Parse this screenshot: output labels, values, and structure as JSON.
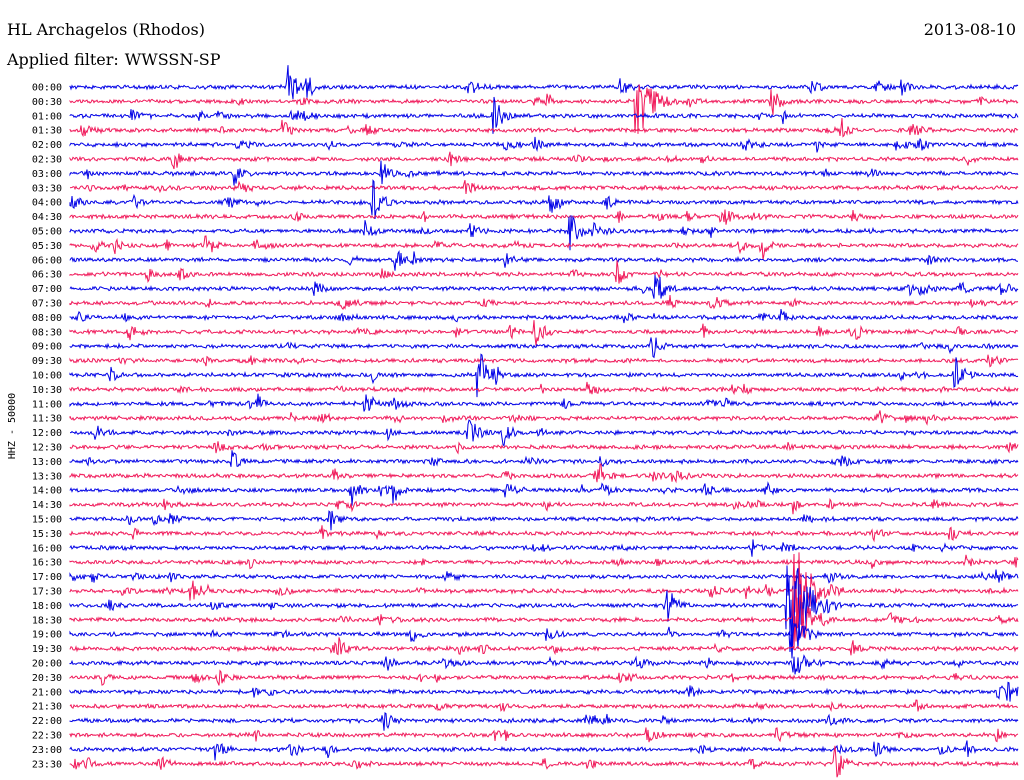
{
  "header": {
    "station": "HL Archagelos (Rhodos)",
    "date": "2013-08-10",
    "filter_label": "Applied filter:",
    "filter_value": "WWSSN-SP"
  },
  "chart_data": {
    "type": "line",
    "title": "HL Archagelos (Rhodos)",
    "subtitle": "Applied filter: WWSSN-SP",
    "date": "2013-08-10",
    "ylabel": "HHZ - 50000",
    "row_labels": [
      "00:00",
      "00:30",
      "01:00",
      "01:30",
      "02:00",
      "02:30",
      "03:00",
      "03:30",
      "04:00",
      "04:30",
      "05:00",
      "05:30",
      "06:00",
      "06:30",
      "07:00",
      "07:30",
      "08:00",
      "08:30",
      "09:00",
      "09:30",
      "10:00",
      "10:30",
      "11:00",
      "11:30",
      "12:00",
      "12:30",
      "13:00",
      "13:30",
      "14:00",
      "14:30",
      "15:00",
      "15:30",
      "16:00",
      "16:30",
      "17:00",
      "17:30",
      "18:00",
      "18:30",
      "19:00",
      "19:30",
      "20:00",
      "20:30",
      "21:00",
      "21:30",
      "22:00",
      "22:30",
      "23:00",
      "23:30"
    ],
    "trace_colors": [
      "#0000e6",
      "#f0195a"
    ],
    "trace_window_minutes": 30,
    "events": [
      {
        "row": "00:00",
        "minute": 6.9,
        "amplitude": 1.1
      },
      {
        "row": "00:00",
        "minute": 7.5,
        "amplitude": 0.9
      },
      {
        "row": "00:00",
        "minute": 26.3,
        "amplitude": 0.8
      },
      {
        "row": "00:30",
        "minute": 17.9,
        "amplitude": 3.4
      },
      {
        "row": "00:30",
        "minute": 22.2,
        "amplitude": 1.1
      },
      {
        "row": "01:00",
        "minute": 13.4,
        "amplitude": 1.5
      },
      {
        "row": "01:30",
        "minute": 6.7,
        "amplitude": 0.9
      },
      {
        "row": "01:30",
        "minute": 24.4,
        "amplitude": 0.8
      },
      {
        "row": "03:00",
        "minute": 5.2,
        "amplitude": 1.1
      },
      {
        "row": "03:00",
        "minute": 9.8,
        "amplitude": 1.2
      },
      {
        "row": "04:00",
        "minute": 9.6,
        "amplitude": 1.4
      },
      {
        "row": "04:00",
        "minute": 15.2,
        "amplitude": 1.3
      },
      {
        "row": "04:30",
        "minute": 20.6,
        "amplitude": 1.2
      },
      {
        "row": "05:00",
        "minute": 15.8,
        "amplitude": 1.6
      },
      {
        "row": "05:30",
        "minute": 4.3,
        "amplitude": 1.0
      },
      {
        "row": "06:00",
        "minute": 10.3,
        "amplitude": 1.0
      },
      {
        "row": "06:30",
        "minute": 17.3,
        "amplitude": 0.9
      },
      {
        "row": "07:00",
        "minute": 18.5,
        "amplitude": 1.6
      },
      {
        "row": "08:30",
        "minute": 14.7,
        "amplitude": 1.2
      },
      {
        "row": "09:00",
        "minute": 18.4,
        "amplitude": 1.1
      },
      {
        "row": "10:00",
        "minute": 12.9,
        "amplitude": 2.2
      },
      {
        "row": "10:00",
        "minute": 28.0,
        "amplitude": 1.5
      },
      {
        "row": "11:00",
        "minute": 9.3,
        "amplitude": 1.3
      },
      {
        "row": "12:00",
        "minute": 12.6,
        "amplitude": 1.4
      },
      {
        "row": "12:00",
        "minute": 13.7,
        "amplitude": 1.0
      },
      {
        "row": "13:00",
        "minute": 5.1,
        "amplitude": 1.0
      },
      {
        "row": "14:00",
        "minute": 8.9,
        "amplitude": 1.1
      },
      {
        "row": "14:00",
        "minute": 10.2,
        "amplitude": 1.0
      },
      {
        "row": "15:00",
        "minute": 8.2,
        "amplitude": 1.0
      },
      {
        "row": "16:00",
        "minute": 14.6,
        "amplitude": 1.1
      },
      {
        "row": "17:30",
        "minute": 3.8,
        "amplitude": 1.0
      },
      {
        "row": "17:30",
        "minute": 22.9,
        "amplitude": 4.2
      },
      {
        "row": "18:00",
        "minute": 22.7,
        "amplitude": 5.0
      },
      {
        "row": "18:00",
        "minute": 18.9,
        "amplitude": 1.3
      },
      {
        "row": "18:30",
        "minute": 22.9,
        "amplitude": 3.6
      },
      {
        "row": "19:00",
        "minute": 22.8,
        "amplitude": 2.3
      },
      {
        "row": "20:00",
        "minute": 22.9,
        "amplitude": 1.8
      },
      {
        "row": "21:00",
        "minute": 29.7,
        "amplitude": 1.5
      },
      {
        "row": "22:00",
        "minute": 9.9,
        "amplitude": 1.0
      },
      {
        "row": "23:00",
        "minute": 4.6,
        "amplitude": 1.0
      },
      {
        "row": "23:30",
        "minute": 24.2,
        "amplitude": 1.4
      }
    ]
  }
}
